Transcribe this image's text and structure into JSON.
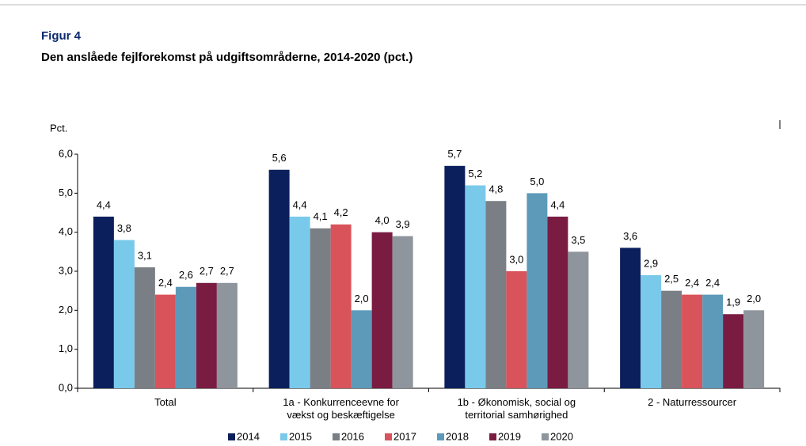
{
  "chart_data": {
    "type": "bar",
    "title": "Figur 4",
    "subtitle": "Den anslåede fejlforekomst på udgiftsområderne, 2014-2020 (pct.)",
    "y_label": "Pct.",
    "categories": [
      "Total",
      "1a - Konkurrenceevne for\nvækst og beskæftigelse",
      "1b - Økonomisk, social og\nterritorial samhørighed",
      "2 - Naturressourcer"
    ],
    "series": [
      {
        "name": "2014",
        "color": "#0b1f5c",
        "values": [
          4.4,
          5.6,
          5.7,
          3.6
        ],
        "value_labels": [
          "4,4",
          "5,6",
          "5,7",
          "3,6"
        ]
      },
      {
        "name": "2015",
        "color": "#79c9ea",
        "values": [
          3.8,
          4.4,
          5.2,
          2.9
        ],
        "value_labels": [
          "3,8",
          "4,4",
          "5,2",
          "2,9"
        ]
      },
      {
        "name": "2016",
        "color": "#7a7f86",
        "values": [
          3.1,
          4.1,
          4.8,
          2.5
        ],
        "value_labels": [
          "3,1",
          "4,1",
          "4,8",
          "2,5"
        ]
      },
      {
        "name": "2017",
        "color": "#d9535a",
        "values": [
          2.4,
          4.2,
          3.0,
          2.4
        ],
        "value_labels": [
          "2,4",
          "4,2",
          "3,0",
          "2,4"
        ]
      },
      {
        "name": "2018",
        "color": "#5d9ab9",
        "values": [
          2.6,
          2.0,
          5.0,
          2.4
        ],
        "value_labels": [
          "2,6",
          "2,0",
          "5,0",
          "2,4"
        ]
      },
      {
        "name": "2019",
        "color": "#7a1c42",
        "values": [
          2.7,
          4.0,
          4.4,
          1.9
        ],
        "value_labels": [
          "2,7",
          "4,0",
          "4,4",
          "1,9"
        ]
      },
      {
        "name": "2020",
        "color": "#8e959c",
        "values": [
          2.7,
          3.9,
          3.5,
          2.0
        ],
        "value_labels": [
          "2,7",
          "3,9",
          "3,5",
          "2,0"
        ]
      }
    ],
    "ylim": [
      0,
      6
    ],
    "yticks": [
      {
        "value": 0,
        "label": "0,0"
      },
      {
        "value": 1,
        "label": "1,0"
      },
      {
        "value": 2,
        "label": "2,0"
      },
      {
        "value": 3,
        "label": "3,0"
      },
      {
        "value": 4,
        "label": "4,0"
      },
      {
        "value": 5,
        "label": "5,0"
      },
      {
        "value": 6,
        "label": "6,0"
      }
    ],
    "grid": false,
    "legend": "bottom"
  }
}
